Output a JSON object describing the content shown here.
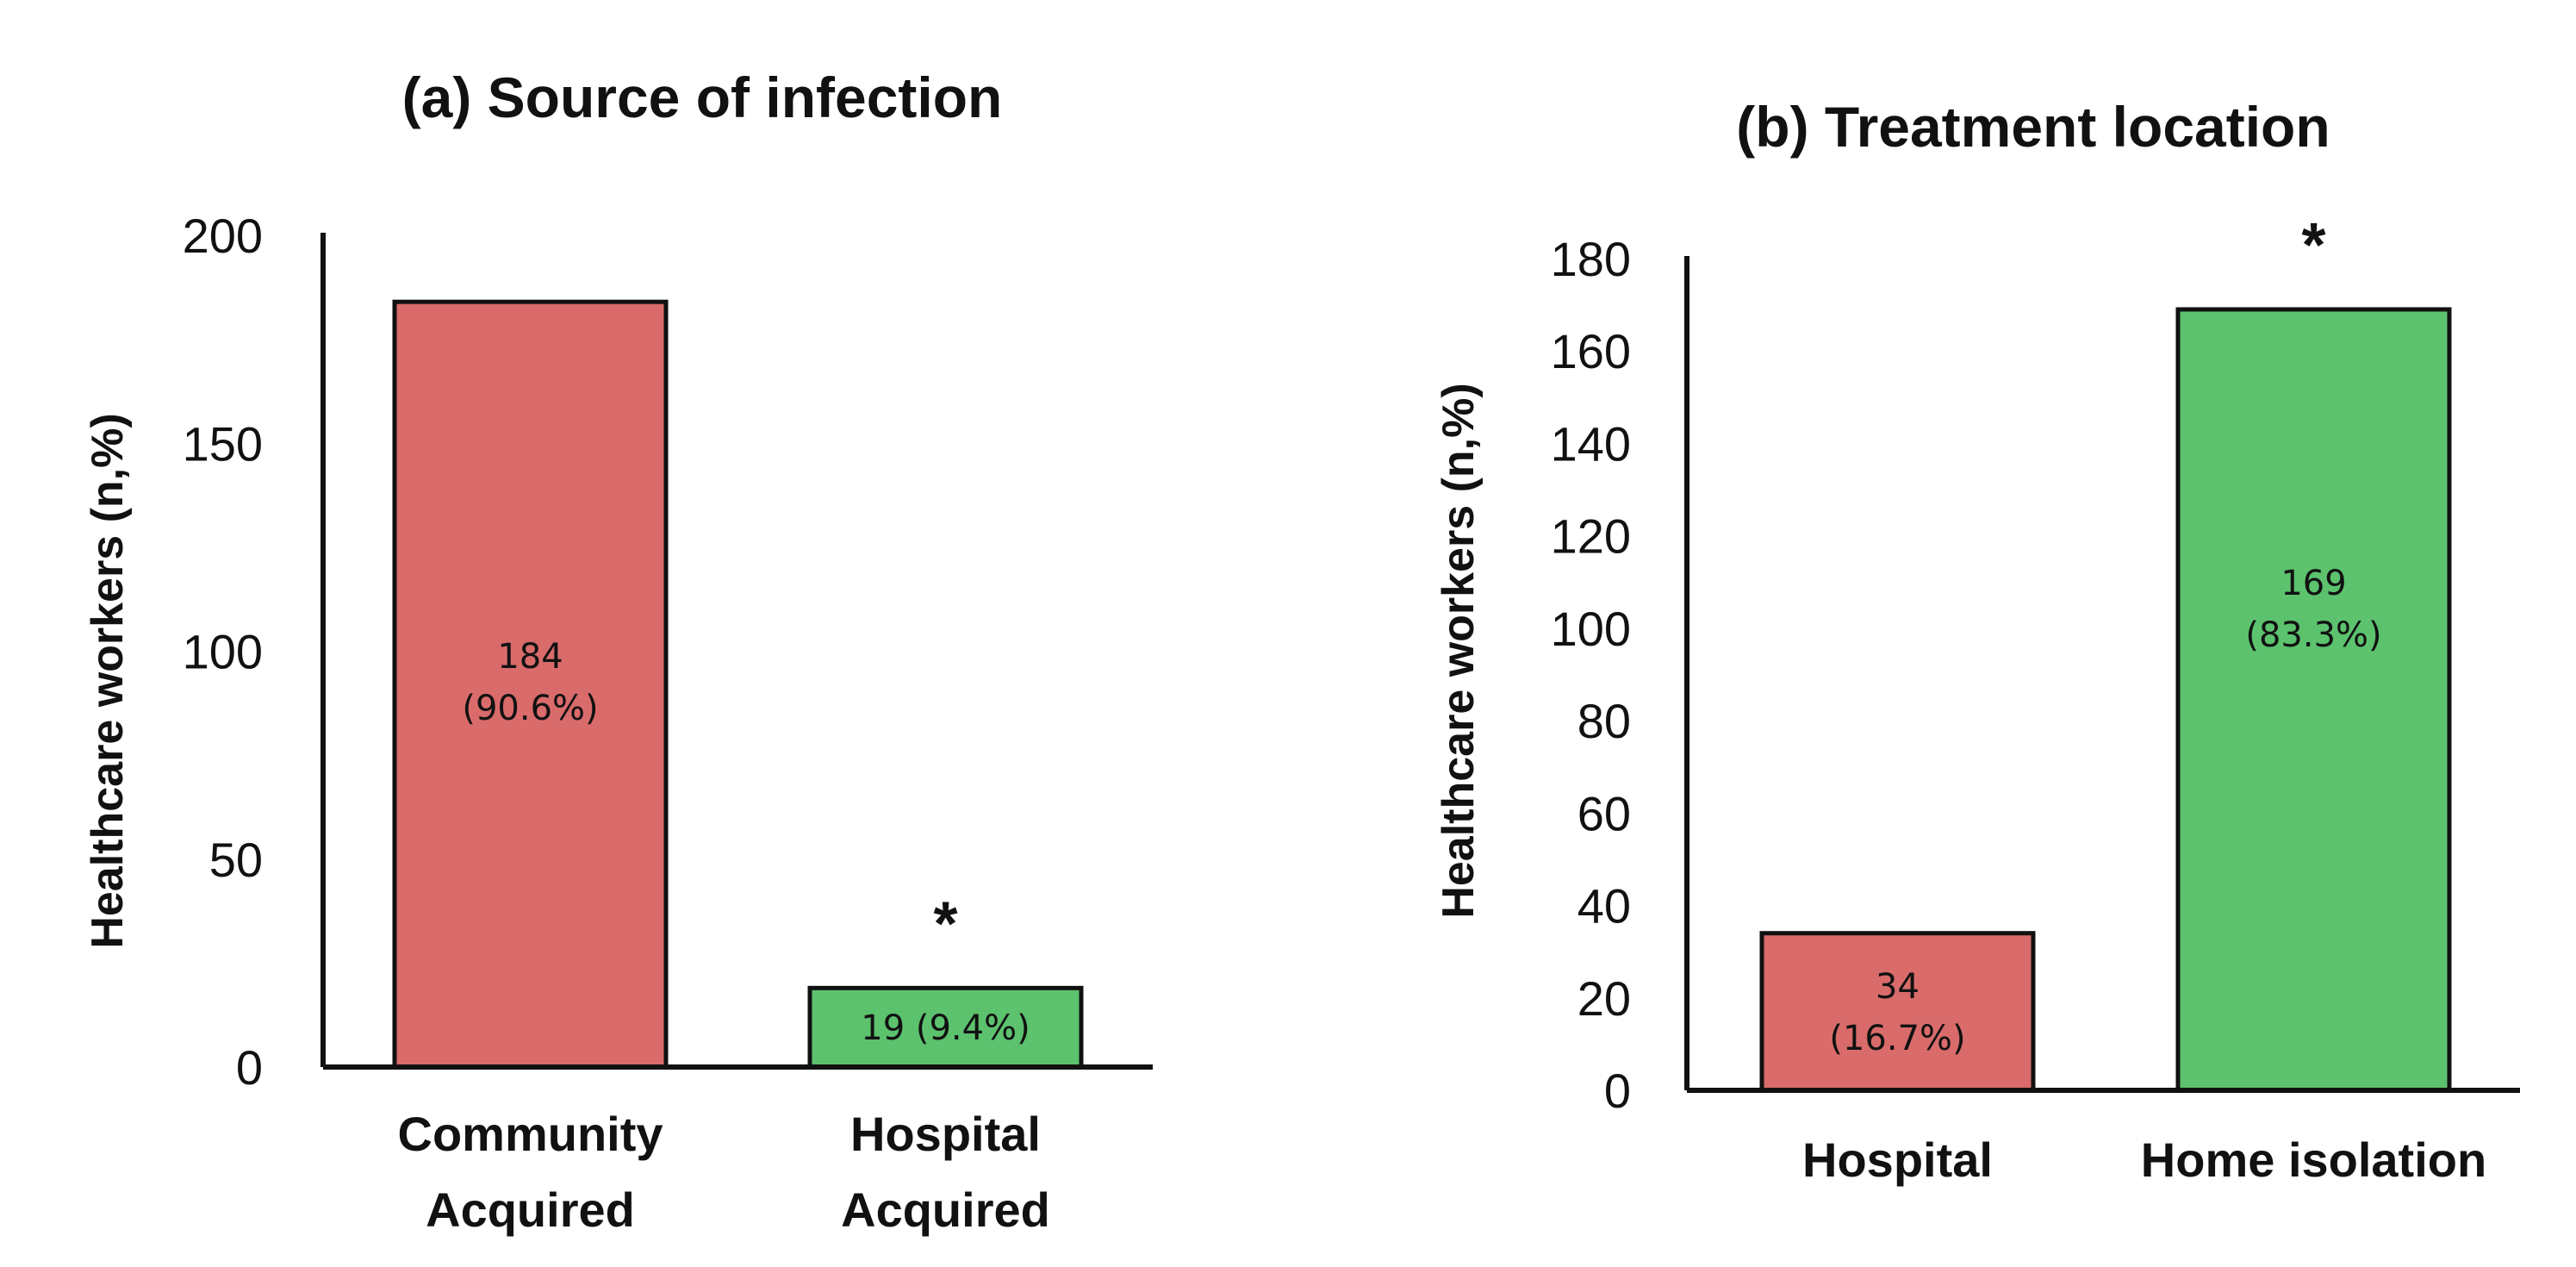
{
  "colors": {
    "red": "#d96b6b",
    "green": "#5cc26e"
  },
  "chart_data": [
    {
      "type": "bar",
      "title": "(a) Source of infection",
      "ylabel": "Healthcare workers (n,%)",
      "xlabel": "",
      "ylim": [
        0,
        200
      ],
      "yticks": [
        "0",
        "50",
        "100",
        "150",
        "200"
      ],
      "categories": [
        [
          "Community",
          "Acquired"
        ],
        [
          "Hospital",
          "Acquired"
        ]
      ],
      "values": [
        184,
        19
      ],
      "data_labels": [
        [
          "184",
          "(90.6%)"
        ],
        [
          "19  (9.4%)"
        ]
      ],
      "bar_colors": [
        "#d96b6b",
        "#5cc26e"
      ],
      "annotations": [
        {
          "category": 1,
          "text": "*"
        }
      ]
    },
    {
      "type": "bar",
      "title": "(b) Treatment location",
      "ylabel": "Healthcare workers (n,%)",
      "xlabel": "",
      "ylim": [
        0,
        180
      ],
      "yticks": [
        "0",
        "20",
        "40",
        "60",
        "80",
        "100",
        "120",
        "140",
        "160",
        "180"
      ],
      "categories": [
        [
          "Hospital"
        ],
        [
          "Home isolation"
        ]
      ],
      "values": [
        34,
        169
      ],
      "data_labels": [
        [
          "34",
          "(16.7%)"
        ],
        [
          "169",
          "(83.3%)"
        ]
      ],
      "bar_colors": [
        "#d96b6b",
        "#5cc26e"
      ],
      "annotations": [
        {
          "category": 1,
          "text": "*"
        }
      ]
    }
  ]
}
